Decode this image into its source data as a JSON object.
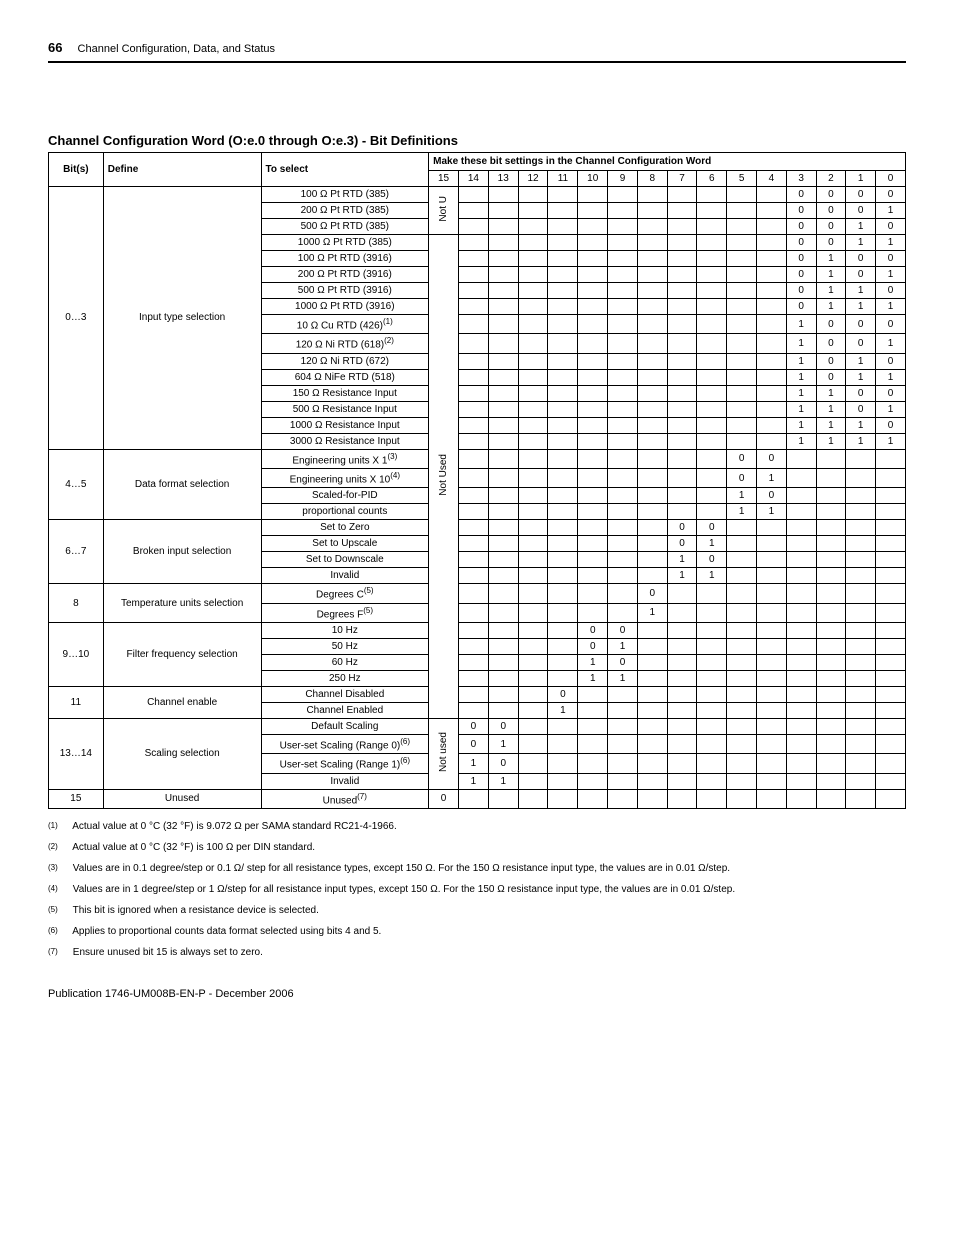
{
  "header": {
    "page_number": "66",
    "section": "Channel Configuration, Data, and Status"
  },
  "title": "Channel Configuration Word (O:e.0 through O:e.3) - Bit Definitions",
  "columns": {
    "bits": "Bit(s)",
    "define": "Define",
    "to_select": "To select",
    "bit_settings": "Make these bit settings in the Channel Configuration Word",
    "bit_nums": [
      "15",
      "14",
      "13",
      "12",
      "11",
      "10",
      "9",
      "8",
      "7",
      "6",
      "5",
      "4",
      "3",
      "2",
      "1",
      "0"
    ]
  },
  "labels": {
    "not_u": "Not U",
    "not_used1": "Not Used",
    "not_used2": "Not used"
  },
  "groups": [
    {
      "bits": "0…3",
      "define": "Input type selection",
      "rows": [
        {
          "sel": "100 Ω Pt RTD (385)",
          "b": {
            "3": "0",
            "2": "0",
            "1": "0",
            "0": "0"
          }
        },
        {
          "sel": "200 Ω Pt RTD (385)",
          "b": {
            "3": "0",
            "2": "0",
            "1": "0",
            "0": "1"
          }
        },
        {
          "sel": "500 Ω Pt RTD (385)",
          "b": {
            "3": "0",
            "2": "0",
            "1": "1",
            "0": "0"
          }
        },
        {
          "sel": "1000 Ω Pt RTD (385)",
          "b": {
            "3": "0",
            "2": "0",
            "1": "1",
            "0": "1"
          }
        },
        {
          "sel": "100 Ω Pt RTD (3916)",
          "b": {
            "3": "0",
            "2": "1",
            "1": "0",
            "0": "0"
          }
        },
        {
          "sel": "200 Ω Pt RTD (3916)",
          "b": {
            "3": "0",
            "2": "1",
            "1": "0",
            "0": "1"
          }
        },
        {
          "sel": "500 Ω Pt RTD (3916)",
          "b": {
            "3": "0",
            "2": "1",
            "1": "1",
            "0": "0"
          }
        },
        {
          "sel": "1000 Ω Pt RTD (3916)",
          "b": {
            "3": "0",
            "2": "1",
            "1": "1",
            "0": "1"
          }
        },
        {
          "sel": "10 Ω Cu RTD (426)",
          "sup": "(1)",
          "b": {
            "3": "1",
            "2": "0",
            "1": "0",
            "0": "0"
          }
        },
        {
          "sel": "120 Ω Ni RTD (618)",
          "sup": "(2)",
          "b": {
            "3": "1",
            "2": "0",
            "1": "0",
            "0": "1"
          }
        },
        {
          "sel": "120 Ω Ni RTD (672)",
          "b": {
            "3": "1",
            "2": "0",
            "1": "1",
            "0": "0"
          }
        },
        {
          "sel": "604 Ω NiFe RTD (518)",
          "b": {
            "3": "1",
            "2": "0",
            "1": "1",
            "0": "1"
          }
        },
        {
          "sel": "150 Ω Resistance Input",
          "b": {
            "3": "1",
            "2": "1",
            "1": "0",
            "0": "0"
          }
        },
        {
          "sel": "500 Ω Resistance Input",
          "b": {
            "3": "1",
            "2": "1",
            "1": "0",
            "0": "1"
          }
        },
        {
          "sel": "1000 Ω Resistance Input",
          "b": {
            "3": "1",
            "2": "1",
            "1": "1",
            "0": "0"
          }
        },
        {
          "sel": "3000 Ω Resistance Input",
          "b": {
            "3": "1",
            "2": "1",
            "1": "1",
            "0": "1"
          }
        }
      ]
    },
    {
      "bits": "4…5",
      "define": "Data format selection",
      "rows": [
        {
          "sel": "Engineering units X 1",
          "sup": "(3)",
          "b": {
            "5": "0",
            "4": "0"
          }
        },
        {
          "sel": "Engineering units X 10",
          "sup": "(4)",
          "b": {
            "5": "0",
            "4": "1"
          }
        },
        {
          "sel": "Scaled-for-PID",
          "b": {
            "5": "1",
            "4": "0"
          }
        },
        {
          "sel": "proportional counts",
          "b": {
            "5": "1",
            "4": "1"
          }
        }
      ]
    },
    {
      "bits": "6…7",
      "define": "Broken input selection",
      "rows": [
        {
          "sel": "Set to Zero",
          "b": {
            "7": "0",
            "6": "0"
          }
        },
        {
          "sel": "Set to Upscale",
          "b": {
            "7": "0",
            "6": "1"
          }
        },
        {
          "sel": "Set to Downscale",
          "b": {
            "7": "1",
            "6": "0"
          }
        },
        {
          "sel": "Invalid",
          "b": {
            "7": "1",
            "6": "1"
          }
        }
      ]
    },
    {
      "bits": "8",
      "define": "Temperature units selection",
      "rows": [
        {
          "sel": "Degrees C",
          "sup": "(5)",
          "b": {
            "8": "0"
          }
        },
        {
          "sel": "Degrees F",
          "sup": "(5)",
          "b": {
            "8": "1"
          }
        }
      ]
    },
    {
      "bits": "9…10",
      "define": "Filter frequency selection",
      "rows": [
        {
          "sel": "10 Hz",
          "b": {
            "10": "0",
            "9": "0"
          }
        },
        {
          "sel": "50 Hz",
          "b": {
            "10": "0",
            "9": "1"
          }
        },
        {
          "sel": "60 Hz",
          "b": {
            "10": "1",
            "9": "0"
          }
        },
        {
          "sel": "250 Hz",
          "b": {
            "10": "1",
            "9": "1"
          }
        }
      ]
    },
    {
      "bits": "11",
      "define": "Channel enable",
      "rows": [
        {
          "sel": "Channel Disabled",
          "b": {
            "11": "0"
          }
        },
        {
          "sel": "Channel Enabled",
          "b": {
            "11": "1"
          }
        }
      ]
    },
    {
      "bits": "13…14",
      "define": "Scaling selection",
      "rows": [
        {
          "sel": "Default Scaling",
          "b": {
            "14": "0",
            "13": "0"
          }
        },
        {
          "sel": "User-set Scaling (Range 0)",
          "sup": "(6)",
          "b": {
            "14": "0",
            "13": "1"
          }
        },
        {
          "sel": "User-set Scaling (Range 1)",
          "sup": "(6)",
          "b": {
            "14": "1",
            "13": "0"
          }
        },
        {
          "sel": "Invalid",
          "b": {
            "14": "1",
            "13": "1"
          }
        }
      ]
    },
    {
      "bits": "15",
      "define": "Unused",
      "rows": [
        {
          "sel": "Unused",
          "sup": "(7)",
          "b": {
            "15": "0"
          }
        }
      ]
    }
  ],
  "footnotes": [
    {
      "n": "(1)",
      "t": "Actual value at 0 °C (32 °F) is 9.072 Ω per SAMA standard RC21-4-1966."
    },
    {
      "n": "(2)",
      "t": "Actual value at 0 °C (32 °F) is 100 Ω per DIN standard."
    },
    {
      "n": "(3)",
      "t": "Values are in 0.1 degree/step or 0.1 Ω/ step for all resistance types, except 150 Ω. For the 150 Ω resistance input type, the values are in 0.01 Ω/step."
    },
    {
      "n": "(4)",
      "t": "Values are in 1 degree/step or 1 Ω/step for all resistance input types, except 150 Ω. For the 150 Ω resistance input type, the values are in 0.01 Ω/step."
    },
    {
      "n": "(5)",
      "t": "This bit is ignored when a resistance device is selected."
    },
    {
      "n": "(6)",
      "t": "Applies to proportional counts data format selected using bits 4 and 5."
    },
    {
      "n": "(7)",
      "t": "Ensure unused bit 15 is always set to zero."
    }
  ],
  "publication": "Publication 1746-UM008B-EN-P - December 2006"
}
